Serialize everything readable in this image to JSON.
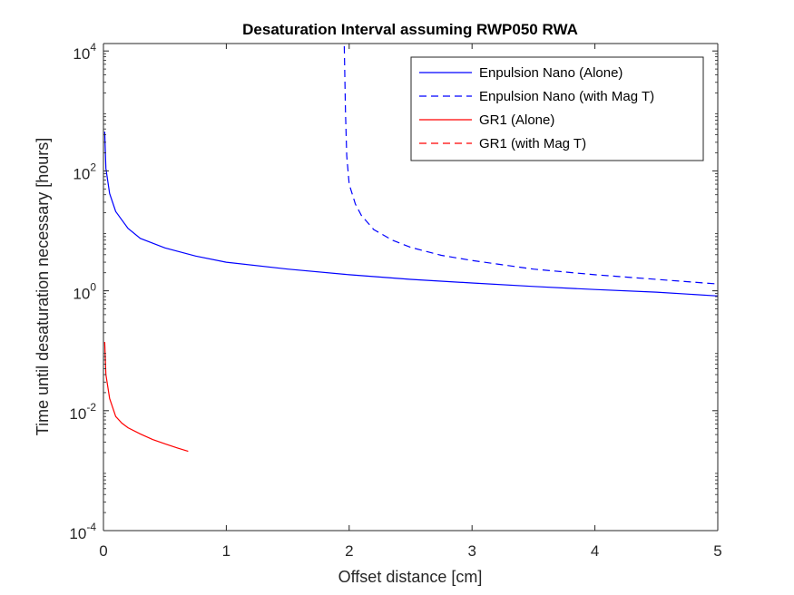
{
  "chart_data": {
    "type": "line",
    "title": "Desaturation Interval assuming RWP050 RWA",
    "xlabel": "Offset distance [cm]",
    "ylabel": "Time until desaturation necessary [hours]",
    "xlim": [
      0,
      5
    ],
    "ylim": [
      0.0001,
      12000
    ],
    "yscale": "log",
    "x_ticks": [
      "0",
      "1",
      "2",
      "3",
      "4",
      "5"
    ],
    "y_ticks": [
      {
        "base": "10",
        "exp": "-4"
      },
      {
        "base": "10",
        "exp": "-2"
      },
      {
        "base": "10",
        "exp": "0"
      },
      {
        "base": "10",
        "exp": "2"
      },
      {
        "base": "10",
        "exp": "4"
      }
    ],
    "grid": false,
    "legend_position": "top-right",
    "series": [
      {
        "name": "Enpulsion Nano (Alone)",
        "color": "#0000ff",
        "style": "solid",
        "x": [
          0.01,
          0.02,
          0.05,
          0.1,
          0.2,
          0.3,
          0.5,
          0.75,
          1.0,
          1.5,
          2.0,
          2.5,
          3.0,
          3.5,
          4.0,
          4.5,
          5.0
        ],
        "y": [
          450,
          110,
          42,
          21,
          11,
          7.5,
          5.2,
          3.8,
          3.0,
          2.3,
          1.85,
          1.55,
          1.35,
          1.18,
          1.05,
          0.95,
          0.82
        ]
      },
      {
        "name": "Enpulsion Nano (with Mag T)",
        "color": "#0000ff",
        "style": "dashed",
        "x": [
          1.96,
          1.97,
          1.98,
          2.0,
          2.05,
          2.1,
          2.2,
          2.35,
          2.5,
          2.75,
          3.0,
          3.5,
          4.0,
          4.5,
          5.0
        ],
        "y": [
          12000,
          1000,
          180,
          60,
          28,
          18,
          10.5,
          7,
          5.3,
          3.9,
          3.2,
          2.3,
          1.85,
          1.55,
          1.3
        ]
      },
      {
        "name": "GR1 (Alone)",
        "color": "#ff0000",
        "style": "solid",
        "x": [
          0.01,
          0.02,
          0.05,
          0.1,
          0.15,
          0.2,
          0.3,
          0.4,
          0.5,
          0.6,
          0.69
        ],
        "y": [
          0.14,
          0.04,
          0.016,
          0.008,
          0.0062,
          0.0052,
          0.0041,
          0.0033,
          0.0028,
          0.0024,
          0.0021
        ]
      },
      {
        "name": "GR1 (with Mag T)",
        "color": "#ff0000",
        "style": "dashed",
        "x": [],
        "y": []
      }
    ]
  }
}
